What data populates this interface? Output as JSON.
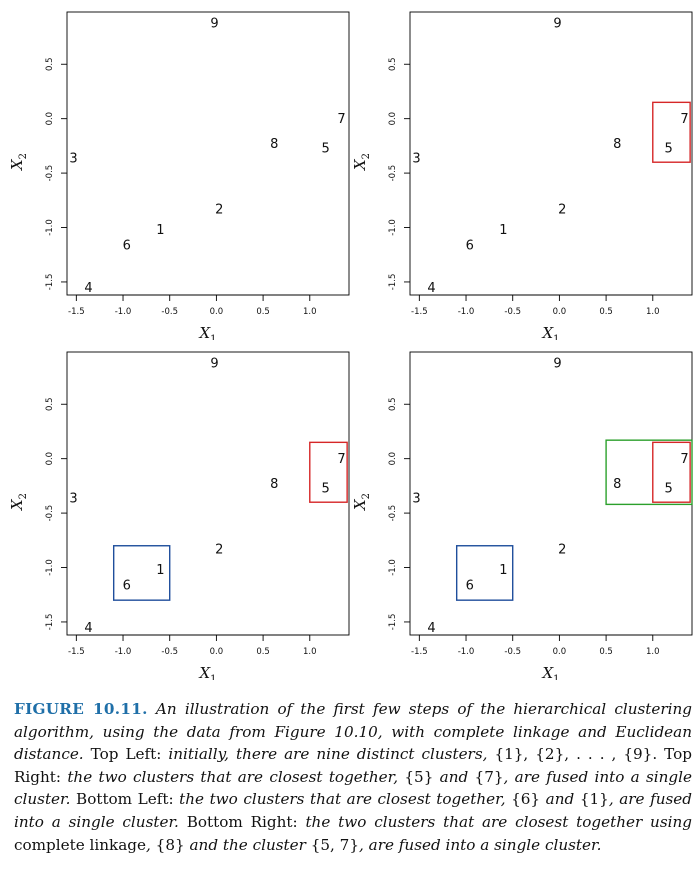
{
  "chart_data": [
    {
      "type": "scatter",
      "panel": "top-left",
      "xlabel": "X1",
      "ylabel": "X2",
      "xlim": [
        -1.6,
        1.42
      ],
      "ylim": [
        -1.62,
        0.98
      ],
      "xticks": [
        -1.5,
        -1.0,
        -0.5,
        0.0,
        0.5,
        1.0
      ],
      "yticks": [
        -1.5,
        -1.0,
        -0.5,
        0.0,
        0.5
      ],
      "points": [
        {
          "label": "1",
          "x": -0.6,
          "y": -1.02
        },
        {
          "label": "2",
          "x": 0.03,
          "y": -0.83
        },
        {
          "label": "3",
          "x": -1.53,
          "y": -0.36
        },
        {
          "label": "4",
          "x": -1.37,
          "y": -1.55
        },
        {
          "label": "5",
          "x": 1.17,
          "y": -0.27
        },
        {
          "label": "6",
          "x": -0.96,
          "y": -1.16
        },
        {
          "label": "7",
          "x": 1.34,
          "y": 0.0
        },
        {
          "label": "8",
          "x": 0.62,
          "y": -0.23
        },
        {
          "label": "9",
          "x": -0.02,
          "y": 0.88
        }
      ],
      "clusters": []
    },
    {
      "type": "scatter",
      "panel": "top-right",
      "xlabel": "X1",
      "ylabel": "X2",
      "xlim": [
        -1.6,
        1.42
      ],
      "ylim": [
        -1.62,
        0.98
      ],
      "xticks": [
        -1.5,
        -1.0,
        -0.5,
        0.0,
        0.5,
        1.0
      ],
      "yticks": [
        -1.5,
        -1.0,
        -0.5,
        0.0,
        0.5
      ],
      "points": [
        {
          "label": "1",
          "x": -0.6,
          "y": -1.02
        },
        {
          "label": "2",
          "x": 0.03,
          "y": -0.83
        },
        {
          "label": "3",
          "x": -1.53,
          "y": -0.36
        },
        {
          "label": "4",
          "x": -1.37,
          "y": -1.55
        },
        {
          "label": "5",
          "x": 1.17,
          "y": -0.27
        },
        {
          "label": "6",
          "x": -0.96,
          "y": -1.16
        },
        {
          "label": "7",
          "x": 1.34,
          "y": 0.0
        },
        {
          "label": "8",
          "x": 0.62,
          "y": -0.23
        },
        {
          "label": "9",
          "x": -0.02,
          "y": 0.88
        }
      ],
      "clusters": [
        {
          "members": [
            "5",
            "7"
          ],
          "color": "#d62728",
          "x": [
            1.0,
            1.4
          ],
          "y": [
            -0.4,
            0.15
          ]
        }
      ]
    },
    {
      "type": "scatter",
      "panel": "bottom-left",
      "xlabel": "X1",
      "ylabel": "X2",
      "xlim": [
        -1.6,
        1.42
      ],
      "ylim": [
        -1.62,
        0.98
      ],
      "xticks": [
        -1.5,
        -1.0,
        -0.5,
        0.0,
        0.5,
        1.0
      ],
      "yticks": [
        -1.5,
        -1.0,
        -0.5,
        0.0,
        0.5
      ],
      "points": [
        {
          "label": "1",
          "x": -0.6,
          "y": -1.02
        },
        {
          "label": "2",
          "x": 0.03,
          "y": -0.83
        },
        {
          "label": "3",
          "x": -1.53,
          "y": -0.36
        },
        {
          "label": "4",
          "x": -1.37,
          "y": -1.55
        },
        {
          "label": "5",
          "x": 1.17,
          "y": -0.27
        },
        {
          "label": "6",
          "x": -0.96,
          "y": -1.16
        },
        {
          "label": "7",
          "x": 1.34,
          "y": 0.0
        },
        {
          "label": "8",
          "x": 0.62,
          "y": -0.23
        },
        {
          "label": "9",
          "x": -0.02,
          "y": 0.88
        }
      ],
      "clusters": [
        {
          "members": [
            "5",
            "7"
          ],
          "color": "#d62728",
          "x": [
            1.0,
            1.4
          ],
          "y": [
            -0.4,
            0.15
          ]
        },
        {
          "members": [
            "6",
            "1"
          ],
          "color": "#1f4e9c",
          "x": [
            -1.1,
            -0.5
          ],
          "y": [
            -1.3,
            -0.8
          ]
        }
      ]
    },
    {
      "type": "scatter",
      "panel": "bottom-right",
      "xlabel": "X1",
      "ylabel": "X2",
      "xlim": [
        -1.6,
        1.42
      ],
      "ylim": [
        -1.62,
        0.98
      ],
      "xticks": [
        -1.5,
        -1.0,
        -0.5,
        0.0,
        0.5,
        1.0
      ],
      "yticks": [
        -1.5,
        -1.0,
        -0.5,
        0.0,
        0.5
      ],
      "points": [
        {
          "label": "1",
          "x": -0.6,
          "y": -1.02
        },
        {
          "label": "2",
          "x": 0.03,
          "y": -0.83
        },
        {
          "label": "3",
          "x": -1.53,
          "y": -0.36
        },
        {
          "label": "4",
          "x": -1.37,
          "y": -1.55
        },
        {
          "label": "5",
          "x": 1.17,
          "y": -0.27
        },
        {
          "label": "6",
          "x": -0.96,
          "y": -1.16
        },
        {
          "label": "7",
          "x": 1.34,
          "y": 0.0
        },
        {
          "label": "8",
          "x": 0.62,
          "y": -0.23
        },
        {
          "label": "9",
          "x": -0.02,
          "y": 0.88
        }
      ],
      "clusters": [
        {
          "members": [
            "8",
            "5",
            "7"
          ],
          "color": "#2ca02c",
          "x": [
            0.5,
            1.42
          ],
          "y": [
            -0.42,
            0.17
          ]
        },
        {
          "members": [
            "5",
            "7"
          ],
          "color": "#d62728",
          "x": [
            1.0,
            1.4
          ],
          "y": [
            -0.4,
            0.15
          ]
        },
        {
          "members": [
            "6",
            "1"
          ],
          "color": "#1f4e9c",
          "x": [
            -1.1,
            -0.5
          ],
          "y": [
            -1.3,
            -0.8
          ]
        }
      ]
    }
  ],
  "caption": {
    "label": "FIGURE 10.11.",
    "segments": [
      {
        "style": "it",
        "text": " An illustration of the first few steps of the hierarchical clustering algorithm, using the data from Figure 10.10, with complete linkage and Euclidean distance. "
      },
      {
        "style": "rm",
        "text": "Top Left: "
      },
      {
        "style": "it",
        "text": "initially, there are nine distinct clusters, "
      },
      {
        "style": "rm",
        "text": "{1}, {2}, . . . , {9}. Top Right: "
      },
      {
        "style": "it",
        "text": "the two clusters that are closest together, "
      },
      {
        "style": "rm",
        "text": "{5}"
      },
      {
        "style": "it",
        "text": " and "
      },
      {
        "style": "rm",
        "text": "{7}"
      },
      {
        "style": "it",
        "text": ", are fused into a single cluster. "
      },
      {
        "style": "rm",
        "text": "Bottom Left: "
      },
      {
        "style": "it",
        "text": "the two clusters that are closest together, "
      },
      {
        "style": "rm",
        "text": "{6}"
      },
      {
        "style": "it",
        "text": " and "
      },
      {
        "style": "rm",
        "text": "{1}"
      },
      {
        "style": "it",
        "text": ", are fused into a single cluster. "
      },
      {
        "style": "rm",
        "text": "Bottom Right: "
      },
      {
        "style": "it",
        "text": "the two clusters that are closest together using "
      },
      {
        "style": "rm",
        "text": "complete linkage"
      },
      {
        "style": "it",
        "text": ", "
      },
      {
        "style": "rm",
        "text": "{8}"
      },
      {
        "style": "it",
        "text": " and the cluster "
      },
      {
        "style": "rm",
        "text": "{5, 7}"
      },
      {
        "style": "it",
        "text": ", are fused into a single cluster."
      }
    ]
  }
}
